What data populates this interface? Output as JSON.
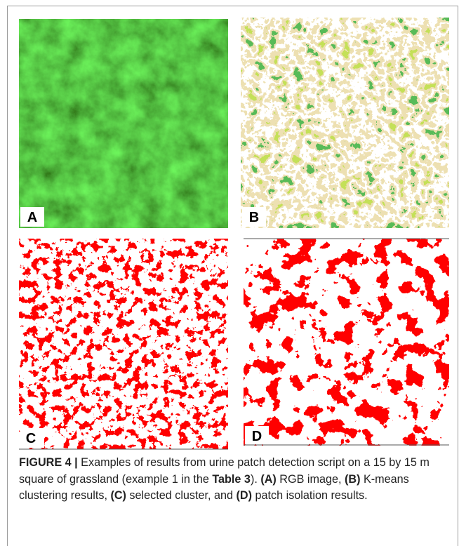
{
  "panels": [
    {
      "label": "A"
    },
    {
      "label": "B"
    },
    {
      "label": "C"
    },
    {
      "label": "D"
    }
  ],
  "caption": [
    {
      "text": "FIGURE 4 |",
      "bold": true
    },
    {
      "text": " Examples of results from urine patch detection script on a 15 by 15 m square of grassland (example 1 in the ",
      "bold": false
    },
    {
      "text": "Table 3",
      "bold": true
    },
    {
      "text": "). ",
      "bold": false
    },
    {
      "text": "(A)",
      "bold": true
    },
    {
      "text": " RGB image, ",
      "bold": false
    },
    {
      "text": "(B)",
      "bold": true
    },
    {
      "text": " K-means clustering results, ",
      "bold": false
    },
    {
      "text": "(C)",
      "bold": true
    },
    {
      "text": " selected cluster, and ",
      "bold": false
    },
    {
      "text": "(D)",
      "bold": true
    },
    {
      "text": " patch isolation results.",
      "bold": false
    }
  ]
}
